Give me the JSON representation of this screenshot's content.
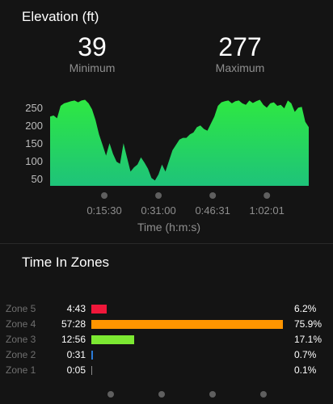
{
  "elevation": {
    "title": "Elevation (ft)",
    "minimum": {
      "value": "39",
      "label": "Minimum"
    },
    "maximum": {
      "value": "277",
      "label": "Maximum"
    }
  },
  "chart_data": {
    "type": "area",
    "title": "Elevation (ft)",
    "xlabel": "Time (h:m:s)",
    "ylabel": "",
    "x_tick_labels": [
      "0:15:30",
      "0:31:00",
      "0:46:31",
      "1:02:01"
    ],
    "y_tick_labels": [
      "250",
      "200",
      "150",
      "100",
      "50"
    ],
    "ylim": [
      30,
      280
    ],
    "x_unit": "minutes",
    "xlim": [
      0,
      74
    ],
    "series": [
      {
        "x": [
          0,
          1,
          2,
          3,
          4,
          5,
          6,
          7,
          8,
          9,
          10,
          11,
          12,
          13,
          14,
          15,
          16,
          17,
          18,
          19,
          20,
          21,
          22,
          23,
          24,
          25,
          26,
          27,
          28,
          29,
          30,
          31,
          32,
          33,
          34,
          35,
          36,
          37,
          38,
          39,
          40,
          41,
          42,
          43,
          44,
          45,
          46,
          47,
          48,
          49,
          50,
          51,
          52,
          53,
          54,
          55,
          56,
          57,
          58,
          59,
          60,
          61,
          62,
          63,
          64,
          65,
          66,
          67,
          68,
          69,
          70,
          71,
          72,
          73,
          74
        ],
        "values": [
          225,
          228,
          220,
          255,
          262,
          265,
          268,
          270,
          265,
          270,
          272,
          262,
          245,
          215,
          175,
          145,
          115,
          150,
          120,
          98,
          92,
          150,
          110,
          70,
          82,
          90,
          110,
          95,
          78,
          52,
          45,
          62,
          90,
          70,
          100,
          130,
          145,
          160,
          165,
          165,
          175,
          180,
          195,
          200,
          190,
          185,
          205,
          225,
          255,
          265,
          268,
          270,
          262,
          268,
          270,
          262,
          258,
          270,
          263,
          268,
          272,
          258,
          250,
          262,
          265,
          255,
          258,
          248,
          270,
          262,
          238,
          250,
          252,
          210,
          195
        ]
      }
    ],
    "area_color": "#2ee842",
    "area_color_bottom": "#1ec37a",
    "grid": false
  },
  "zones": {
    "title": "Time In Zones",
    "items": [
      {
        "name": "Zone 5",
        "time": "4:43",
        "pct": "6.2%",
        "fraction": 0.062,
        "color": "#f0173a"
      },
      {
        "name": "Zone 4",
        "time": "57:28",
        "pct": "75.9%",
        "fraction": 0.759,
        "color": "#ff9500"
      },
      {
        "name": "Zone 3",
        "time": "12:56",
        "pct": "17.1%",
        "fraction": 0.171,
        "color": "#7ce832"
      },
      {
        "name": "Zone 2",
        "time": "0:31",
        "pct": "0.7%",
        "fraction": 0.007,
        "color": "#2a7ad6"
      },
      {
        "name": "Zone 1",
        "time": "0:05",
        "pct": "0.1%",
        "fraction": 0.001,
        "color": "#8a8a8a"
      }
    ]
  },
  "pagination": {
    "count": 4
  }
}
